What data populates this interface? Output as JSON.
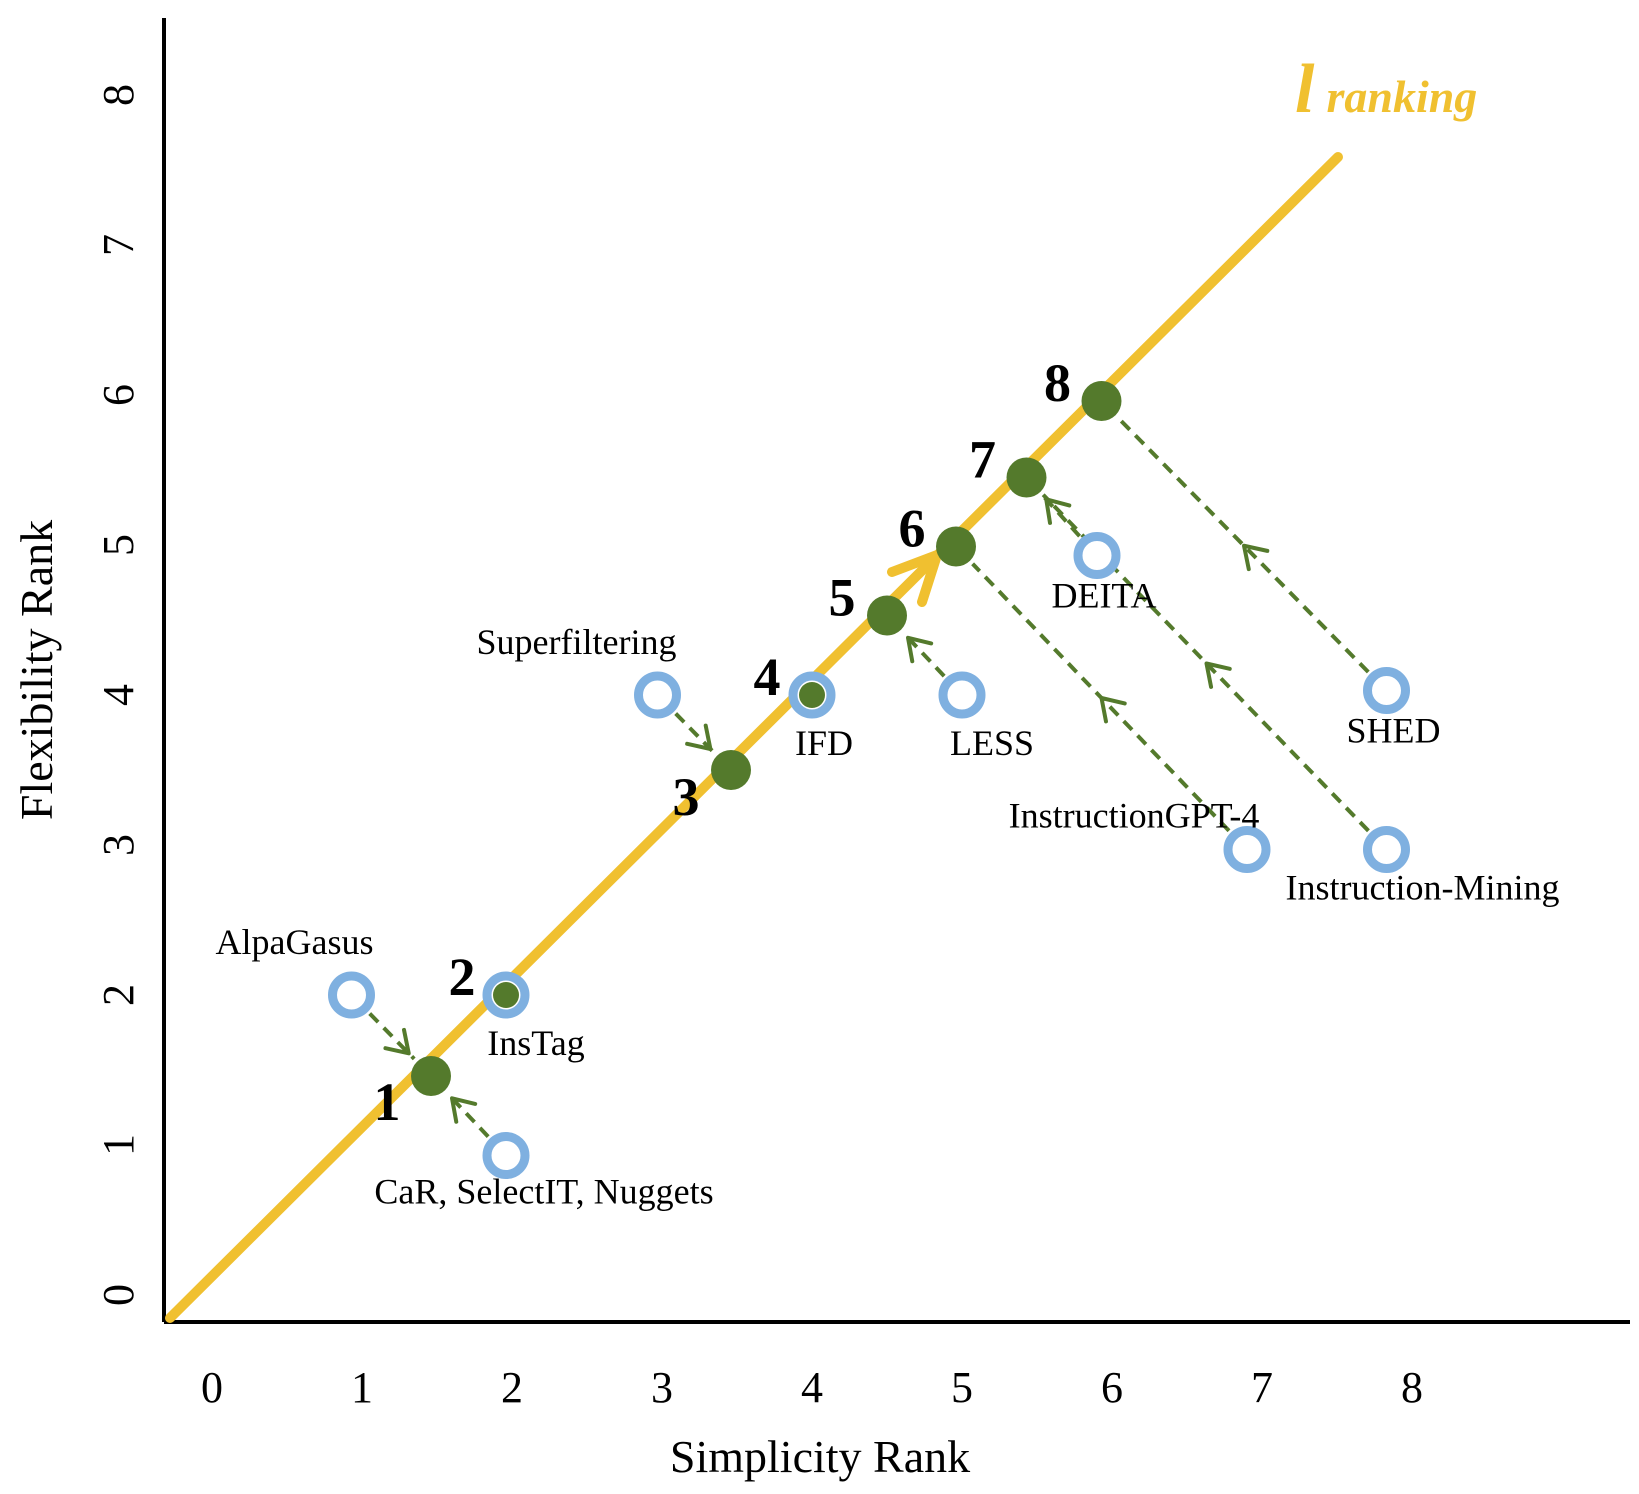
{
  "chart_data": {
    "type": "scatter",
    "xlabel": "Simplicity Rank",
    "ylabel": "Flexibility Rank",
    "x_ticks": [
      "0",
      "1",
      "2",
      "3",
      "4",
      "5",
      "6",
      "7",
      "8"
    ],
    "y_ticks": [
      "0",
      "1",
      "2",
      "3",
      "4",
      "5",
      "6",
      "7",
      "8"
    ],
    "xlim": [
      0,
      8
    ],
    "ylim": [
      0,
      8
    ],
    "grid": false,
    "line_label": {
      "symbol": "l",
      "text": "ranking"
    },
    "line_color": "#F0C030",
    "method_color": "#7FB0E0",
    "rank_color": "#547A2C",
    "methods": [
      {
        "name": "AlpaGasus",
        "x": 0.93,
        "y": 2.0,
        "rank": 1
      },
      {
        "name": "CaR, SelectIT, Nuggets",
        "x": 1.96,
        "y": 0.93,
        "rank": 1
      },
      {
        "name": "InsTag",
        "x": 1.96,
        "y": 2.0,
        "rank": 2
      },
      {
        "name": "Superfiltering",
        "x": 2.97,
        "y": 4.0,
        "rank": 3
      },
      {
        "name": "IFD",
        "x": 4.0,
        "y": 4.0,
        "rank": 4
      },
      {
        "name": "LESS",
        "x": 5.0,
        "y": 4.0,
        "rank": 5
      },
      {
        "name": "InstructionGPT-4",
        "x": 6.9,
        "y": 2.97,
        "rank": 6
      },
      {
        "name": "DEITA",
        "x": 5.9,
        "y": 4.93,
        "rank": 7
      },
      {
        "name": "Instruction-Mining",
        "x": 7.83,
        "y": 2.97,
        "rank": 7
      },
      {
        "name": "SHED",
        "x": 7.83,
        "y": 4.03,
        "rank": 8
      }
    ],
    "rank_points": [
      {
        "rank": "1",
        "x": 1.46,
        "y": 1.46
      },
      {
        "rank": "2",
        "x": 1.96,
        "y": 2.0
      },
      {
        "rank": "3",
        "x": 3.46,
        "y": 3.5
      },
      {
        "rank": "4",
        "x": 4.0,
        "y": 4.0
      },
      {
        "rank": "5",
        "x": 4.5,
        "y": 4.53
      },
      {
        "rank": "6",
        "x": 4.96,
        "y": 4.99
      },
      {
        "rank": "7",
        "x": 5.43,
        "y": 5.45
      },
      {
        "rank": "8",
        "x": 5.93,
        "y": 5.96
      }
    ]
  }
}
